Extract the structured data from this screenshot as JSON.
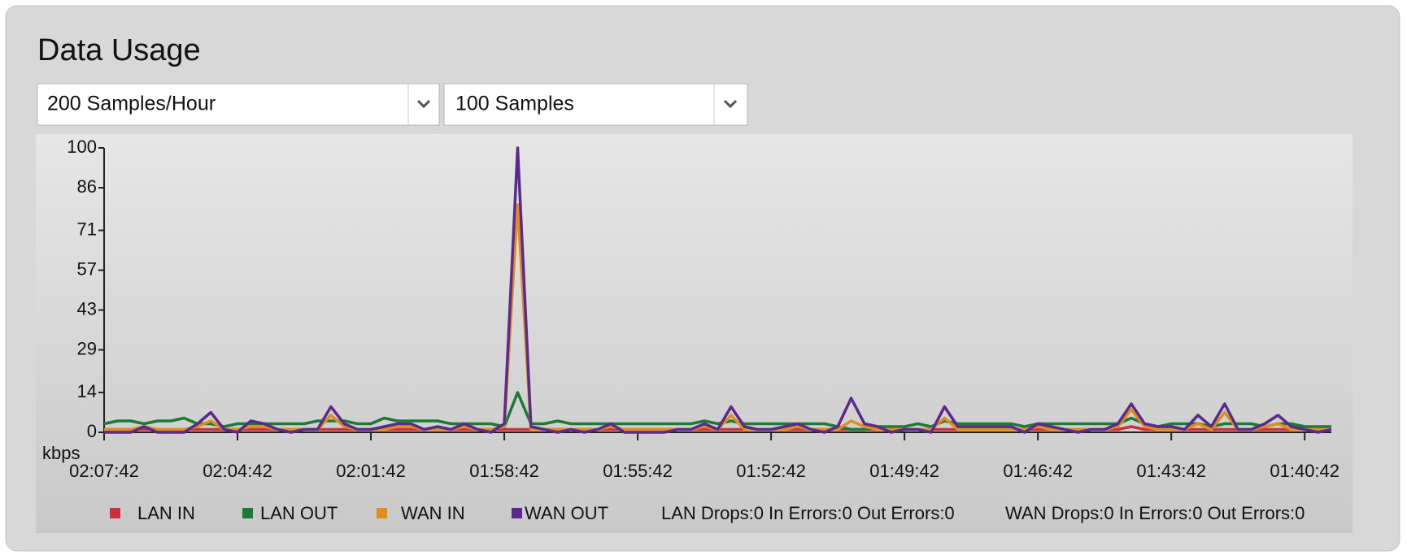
{
  "panel": {
    "title": "Data Usage",
    "selects": [
      "200 Samples/Hour",
      "100 Samples"
    ]
  },
  "chart_data": {
    "type": "line",
    "y_label": "kbps",
    "ylim": [
      0,
      100
    ],
    "yticks": [
      0,
      14,
      29,
      43,
      57,
      71,
      86,
      100
    ],
    "categories": [
      "02:07:42",
      null,
      null,
      null,
      null,
      null,
      null,
      null,
      null,
      null,
      "02:04:42",
      null,
      null,
      null,
      null,
      null,
      null,
      null,
      null,
      null,
      "02:01:42",
      null,
      null,
      null,
      null,
      null,
      null,
      null,
      null,
      null,
      "01:58:42",
      null,
      null,
      null,
      null,
      null,
      null,
      null,
      null,
      null,
      "01:55:42",
      null,
      null,
      null,
      null,
      null,
      null,
      null,
      null,
      null,
      "01:52:42",
      null,
      null,
      null,
      null,
      null,
      null,
      null,
      null,
      null,
      "01:49:42",
      null,
      null,
      null,
      null,
      null,
      null,
      null,
      null,
      null,
      "01:46:42",
      null,
      null,
      null,
      null,
      null,
      null,
      null,
      null,
      null,
      "01:43:42",
      null,
      null,
      null,
      null,
      null,
      null,
      null,
      null,
      null,
      "01:40:42",
      null,
      null
    ],
    "series": [
      {
        "name": "LAN IN",
        "color": "#c8323a",
        "values": [
          1,
          1,
          1,
          1,
          1,
          0,
          1,
          1,
          1,
          1,
          1,
          1,
          1,
          1,
          1,
          1,
          1,
          1,
          1,
          1,
          1,
          1,
          1,
          1,
          1,
          1,
          1,
          1,
          1,
          1,
          1,
          1,
          1,
          1,
          1,
          1,
          1,
          1,
          1,
          1,
          1,
          1,
          1,
          1,
          1,
          1,
          1,
          1,
          1,
          1,
          1,
          1,
          1,
          1,
          1,
          1,
          1,
          1,
          1,
          1,
          1,
          1,
          1,
          1,
          1,
          1,
          1,
          1,
          1,
          1,
          1,
          1,
          1,
          1,
          1,
          1,
          1,
          2,
          1,
          1,
          1,
          1,
          1,
          1,
          1,
          1,
          1,
          1,
          1,
          1,
          1,
          1,
          1
        ]
      },
      {
        "name": "LAN OUT",
        "color": "#1c7a34",
        "values": [
          3,
          4,
          4,
          3,
          4,
          4,
          5,
          3,
          3,
          2,
          3,
          3,
          3,
          3,
          3,
          3,
          4,
          4,
          4,
          3,
          3,
          5,
          4,
          4,
          4,
          4,
          3,
          3,
          3,
          3,
          2,
          14,
          3,
          3,
          4,
          3,
          3,
          3,
          3,
          3,
          3,
          3,
          3,
          3,
          3,
          4,
          3,
          4,
          3,
          3,
          3,
          3,
          3,
          3,
          3,
          2,
          1,
          1,
          2,
          2,
          2,
          3,
          2,
          4,
          3,
          3,
          3,
          3,
          3,
          2,
          3,
          3,
          3,
          3,
          3,
          3,
          3,
          5,
          3,
          2,
          3,
          3,
          3,
          2,
          3,
          3,
          3,
          2,
          3,
          3,
          2,
          2,
          2
        ]
      },
      {
        "name": "WAN IN",
        "color": "#e08c1e",
        "values": [
          1,
          1,
          1,
          2,
          1,
          1,
          1,
          2,
          4,
          1,
          1,
          2,
          2,
          1,
          1,
          1,
          1,
          6,
          2,
          1,
          1,
          1,
          2,
          2,
          1,
          1,
          1,
          2,
          1,
          1,
          2,
          80,
          1,
          1,
          1,
          1,
          1,
          1,
          2,
          1,
          1,
          1,
          1,
          1,
          1,
          2,
          1,
          6,
          1,
          1,
          1,
          1,
          2,
          1,
          1,
          1,
          4,
          2,
          1,
          1,
          1,
          1,
          1,
          5,
          1,
          1,
          1,
          1,
          1,
          1,
          2,
          1,
          1,
          1,
          1,
          1,
          2,
          8,
          2,
          1,
          1,
          1,
          3,
          1,
          7,
          1,
          1,
          2,
          3,
          1,
          1,
          1,
          1
        ]
      },
      {
        "name": "WAN OUT",
        "color": "#5a2a8c",
        "values": [
          0,
          0,
          0,
          2,
          0,
          0,
          0,
          3,
          7,
          1,
          0,
          4,
          3,
          1,
          0,
          1,
          1,
          9,
          3,
          1,
          1,
          2,
          3,
          3,
          1,
          2,
          1,
          3,
          1,
          0,
          3,
          100,
          2,
          1,
          0,
          1,
          0,
          1,
          3,
          0,
          0,
          0,
          0,
          1,
          1,
          3,
          1,
          9,
          2,
          1,
          1,
          2,
          3,
          1,
          0,
          2,
          12,
          3,
          2,
          0,
          1,
          1,
          0,
          9,
          2,
          2,
          2,
          2,
          2,
          0,
          3,
          2,
          1,
          0,
          1,
          1,
          3,
          10,
          3,
          2,
          2,
          1,
          6,
          2,
          10,
          1,
          1,
          3,
          6,
          2,
          1,
          0,
          1
        ]
      }
    ],
    "annotations": [
      "LAN Drops:0 In Errors:0 Out Errors:0",
      "WAN Drops:0 In Errors:0 Out Errors:0"
    ]
  }
}
